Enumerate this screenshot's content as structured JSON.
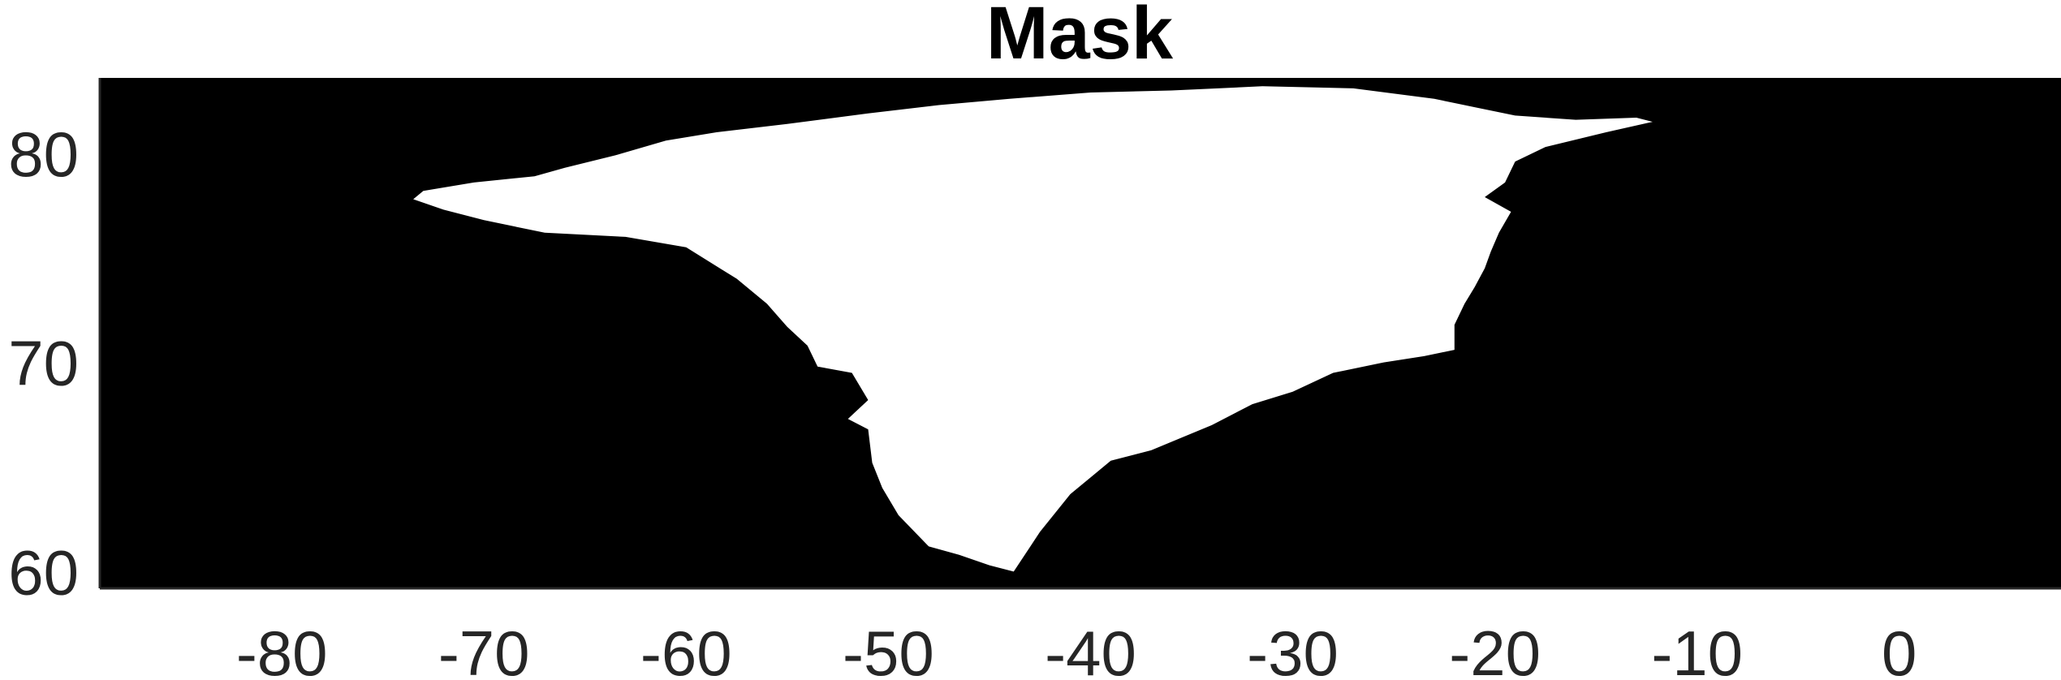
{
  "chart_data": {
    "type": "heatmap",
    "title": "Mask",
    "xlabel": "",
    "ylabel": "",
    "xlim": [
      -89,
      8
    ],
    "ylim": [
      59.2,
      83.6
    ],
    "x_ticks": [
      -80,
      -70,
      -60,
      -50,
      -40,
      -30,
      -20,
      -10,
      0
    ],
    "x_tick_labels": [
      "-80",
      "-70",
      "-60",
      "-50",
      "-40",
      "-30",
      "-20",
      "-10",
      "0"
    ],
    "y_ticks": [
      60,
      70,
      80
    ],
    "y_tick_labels": [
      "60",
      "70",
      "80"
    ],
    "colormap": {
      "0": "#000000",
      "1": "#ffffff"
    },
    "values_described": "binary land/ice mask; white (1) = Greenland, black (0) = ocean",
    "mask_outline_lonlat": [
      [
        -73.0,
        78.2
      ],
      [
        -70.5,
        78.6
      ],
      [
        -67.5,
        78.9
      ],
      [
        -66.0,
        79.3
      ],
      [
        -63.5,
        79.9
      ],
      [
        -61.0,
        80.6
      ],
      [
        -58.5,
        81.0
      ],
      [
        -55.0,
        81.4
      ],
      [
        -51.0,
        81.9
      ],
      [
        -47.5,
        82.3
      ],
      [
        -44.0,
        82.6
      ],
      [
        -40.0,
        82.9
      ],
      [
        -36.0,
        83.0
      ],
      [
        -31.5,
        83.2
      ],
      [
        -27.0,
        83.1
      ],
      [
        -23.0,
        82.6
      ],
      [
        -21.0,
        82.2
      ],
      [
        -19.0,
        81.8
      ],
      [
        -16.0,
        81.6
      ],
      [
        -13.0,
        81.7
      ],
      [
        -12.2,
        81.5
      ],
      [
        -14.5,
        81.0
      ],
      [
        -17.5,
        80.3
      ],
      [
        -19.0,
        79.6
      ],
      [
        -19.5,
        78.6
      ],
      [
        -20.5,
        77.9
      ],
      [
        -19.2,
        77.2
      ],
      [
        -19.8,
        76.2
      ],
      [
        -20.2,
        75.3
      ],
      [
        -20.5,
        74.5
      ],
      [
        -21.0,
        73.6
      ],
      [
        -21.5,
        72.8
      ],
      [
        -22.0,
        71.8
      ],
      [
        -22.0,
        70.6
      ],
      [
        -23.5,
        70.3
      ],
      [
        -25.5,
        70.0
      ],
      [
        -28.0,
        69.5
      ],
      [
        -30.0,
        68.6
      ],
      [
        -32.0,
        68.0
      ],
      [
        -34.0,
        67.0
      ],
      [
        -35.5,
        66.4
      ],
      [
        -37.0,
        65.8
      ],
      [
        -39.0,
        65.3
      ],
      [
        -40.0,
        64.5
      ],
      [
        -41.0,
        63.7
      ],
      [
        -42.5,
        61.9
      ],
      [
        -43.8,
        60.0
      ],
      [
        -45.0,
        60.3
      ],
      [
        -46.5,
        60.8
      ],
      [
        -48.0,
        61.2
      ],
      [
        -49.5,
        62.7
      ],
      [
        -50.3,
        64.0
      ],
      [
        -50.8,
        65.2
      ],
      [
        -51.0,
        66.8
      ],
      [
        -52.0,
        67.3
      ],
      [
        -51.0,
        68.2
      ],
      [
        -51.8,
        69.5
      ],
      [
        -53.5,
        69.8
      ],
      [
        -54.0,
        70.8
      ],
      [
        -55.0,
        71.7
      ],
      [
        -56.0,
        72.8
      ],
      [
        -57.5,
        74.0
      ],
      [
        -60.0,
        75.5
      ],
      [
        -63.0,
        76.0
      ],
      [
        -67.0,
        76.2
      ],
      [
        -70.0,
        76.8
      ],
      [
        -72.0,
        77.3
      ],
      [
        -73.5,
        77.8
      ]
    ]
  }
}
